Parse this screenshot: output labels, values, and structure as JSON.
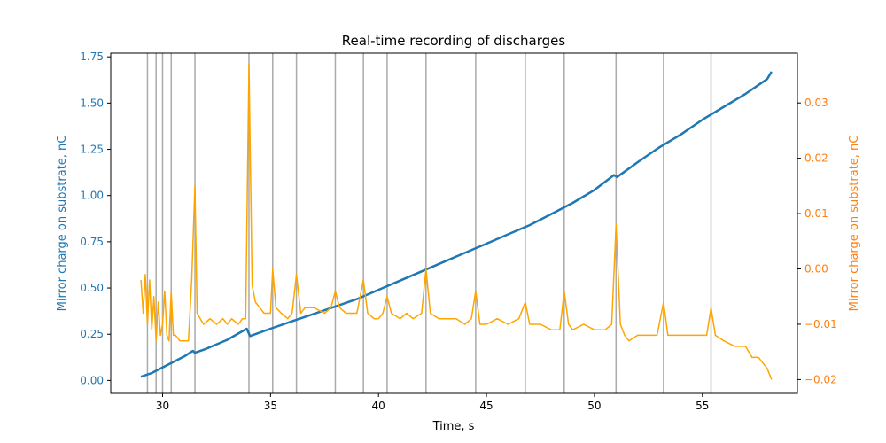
{
  "colors": {
    "series_left": "#1f77b4",
    "series_right": "#ffa500",
    "axis_right_label": "#ff7f0e",
    "event_lines": "#aaaaaa"
  },
  "chart_data": {
    "type": "line",
    "title": "Real-time recording of discharges",
    "xlabel": "Time, s",
    "ylabel_left": "Mirror charge on substrate, nC",
    "ylabel_right": "Mirror charge on substrate, nC",
    "xlim": [
      27.6,
      59.4
    ],
    "ylim_left": [
      -0.07,
      1.77
    ],
    "ylim_right": [
      -0.0225,
      0.039
    ],
    "x_ticks": [
      30,
      35,
      40,
      45,
      50,
      55
    ],
    "y_ticks_left": [
      "0.00",
      "0.25",
      "0.50",
      "0.75",
      "1.00",
      "1.25",
      "1.50",
      "1.75"
    ],
    "y_ticks_right": [
      "−0.02",
      "−0.01",
      "0.00",
      "0.01",
      "0.02",
      "0.03"
    ],
    "grid": false,
    "event_lines_x": [
      29.3,
      29.7,
      30.0,
      30.4,
      31.5,
      34.0,
      35.1,
      36.2,
      38.0,
      39.3,
      40.4,
      42.2,
      44.5,
      46.8,
      48.6,
      51.0,
      53.2,
      55.4
    ],
    "series": [
      {
        "axis": "left",
        "x": [
          29.0,
          29.5,
          30.0,
          30.5,
          31.0,
          31.4,
          31.5,
          32.0,
          33.0,
          33.9,
          34.05,
          35.0,
          36.0,
          37.0,
          38.0,
          39.0,
          40.0,
          41.0,
          42.0,
          43.0,
          44.0,
          45.0,
          46.0,
          47.0,
          48.0,
          49.0,
          50.0,
          50.9,
          51.05,
          52.0,
          53.0,
          54.0,
          55.0,
          56.0,
          57.0,
          58.0,
          58.2
        ],
        "values": [
          0.02,
          0.04,
          0.07,
          0.1,
          0.13,
          0.16,
          0.15,
          0.17,
          0.22,
          0.28,
          0.24,
          0.28,
          0.32,
          0.36,
          0.4,
          0.44,
          0.49,
          0.54,
          0.59,
          0.64,
          0.69,
          0.74,
          0.79,
          0.84,
          0.9,
          0.96,
          1.03,
          1.11,
          1.1,
          1.18,
          1.26,
          1.33,
          1.41,
          1.48,
          1.55,
          1.63,
          1.67
        ]
      },
      {
        "axis": "right",
        "x": [
          29.0,
          29.1,
          29.2,
          29.3,
          29.4,
          29.5,
          29.6,
          29.7,
          29.8,
          29.9,
          30.0,
          30.1,
          30.2,
          30.3,
          30.4,
          30.5,
          30.6,
          30.8,
          31.0,
          31.2,
          31.35,
          31.5,
          31.6,
          31.75,
          31.9,
          32.2,
          32.5,
          32.8,
          33.0,
          33.2,
          33.5,
          33.7,
          33.85,
          34.0,
          34.15,
          34.3,
          34.5,
          34.7,
          35.0,
          35.1,
          35.25,
          35.5,
          35.8,
          36.0,
          36.2,
          36.4,
          36.6,
          37.0,
          37.5,
          37.8,
          38.0,
          38.2,
          38.5,
          39.0,
          39.3,
          39.5,
          39.8,
          40.0,
          40.2,
          40.4,
          40.6,
          41.0,
          41.3,
          41.6,
          42.0,
          42.2,
          42.4,
          42.8,
          43.2,
          43.6,
          44.0,
          44.3,
          44.5,
          44.7,
          45.0,
          45.5,
          46.0,
          46.5,
          46.8,
          47.0,
          47.5,
          48.0,
          48.4,
          48.6,
          48.8,
          49.0,
          49.5,
          50.0,
          50.5,
          50.8,
          51.0,
          51.2,
          51.4,
          51.6,
          52.0,
          52.5,
          52.9,
          53.2,
          53.4,
          53.8,
          54.2,
          54.8,
          55.2,
          55.4,
          55.6,
          56.0,
          56.5,
          57.0,
          57.3,
          57.6,
          57.8,
          58.0,
          58.2
        ],
        "values": [
          -0.002,
          -0.008,
          -0.001,
          -0.01,
          -0.002,
          -0.011,
          -0.005,
          -0.013,
          -0.006,
          -0.012,
          -0.01,
          -0.004,
          -0.012,
          -0.013,
          -0.004,
          -0.012,
          -0.012,
          -0.013,
          -0.013,
          -0.013,
          -0.002,
          0.015,
          -0.008,
          -0.009,
          -0.01,
          -0.009,
          -0.01,
          -0.009,
          -0.01,
          -0.009,
          -0.01,
          -0.009,
          -0.009,
          0.037,
          -0.003,
          -0.006,
          -0.007,
          -0.008,
          -0.008,
          -0.0,
          -0.007,
          -0.008,
          -0.009,
          -0.008,
          -0.001,
          -0.008,
          -0.007,
          -0.007,
          -0.008,
          -0.007,
          -0.004,
          -0.007,
          -0.008,
          -0.008,
          -0.002,
          -0.008,
          -0.009,
          -0.009,
          -0.008,
          -0.005,
          -0.008,
          -0.009,
          -0.008,
          -0.009,
          -0.008,
          0.0,
          -0.008,
          -0.009,
          -0.009,
          -0.009,
          -0.01,
          -0.009,
          -0.004,
          -0.01,
          -0.01,
          -0.009,
          -0.01,
          -0.009,
          -0.006,
          -0.01,
          -0.01,
          -0.011,
          -0.011,
          -0.004,
          -0.01,
          -0.011,
          -0.01,
          -0.011,
          -0.011,
          -0.01,
          0.008,
          -0.01,
          -0.012,
          -0.013,
          -0.012,
          -0.012,
          -0.012,
          -0.006,
          -0.012,
          -0.012,
          -0.012,
          -0.012,
          -0.012,
          -0.007,
          -0.012,
          -0.013,
          -0.014,
          -0.014,
          -0.016,
          -0.016,
          -0.017,
          -0.018,
          -0.02
        ]
      }
    ]
  }
}
